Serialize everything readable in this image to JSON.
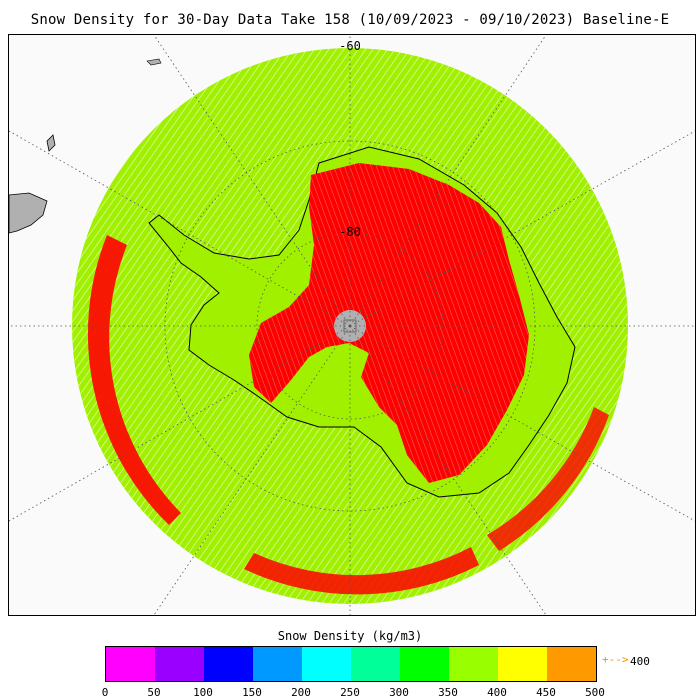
{
  "title": "Snow Density for 30-Day Data Take 158 (10/09/2023 - 09/10/2023) Baseline-E",
  "map": {
    "projection": "south-polar-stereographic",
    "lat_labels": [
      "-60",
      "-80"
    ],
    "colors": {
      "background": "#fafafa",
      "ocean_swath": "#a0f000",
      "ice_sheet": "#ff0000",
      "land": "#b0b0b0",
      "coast": "#000000",
      "graticule": "#555555"
    }
  },
  "colorbar": {
    "title": "Snow Density (kg/m3)",
    "ticks": [
      "0",
      "50",
      "100",
      "150",
      "200",
      "250",
      "300",
      "350",
      "400",
      "450",
      "500"
    ],
    "colors": [
      "#ff00ff",
      "#9900ff",
      "#0000ff",
      "#0099ff",
      "#00ffff",
      "#00ff99",
      "#00ff00",
      "#99ff00",
      "#ffff00",
      "#ff9900"
    ],
    "overflow_arrow": "+-->",
    "overflow_label": "400"
  }
}
